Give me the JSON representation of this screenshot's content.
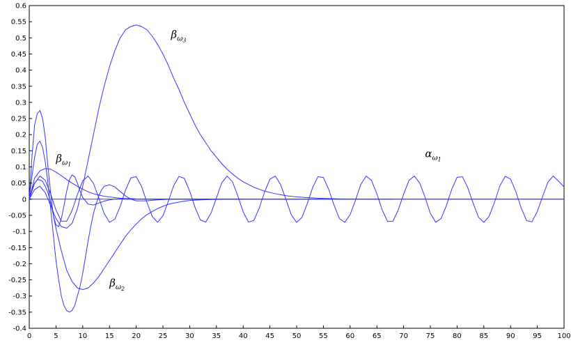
{
  "chart_data": {
    "type": "line",
    "xlim": [
      0,
      100
    ],
    "ylim": [
      -0.4,
      0.6
    ],
    "x_ticks": [
      0,
      5,
      10,
      15,
      20,
      25,
      30,
      35,
      40,
      45,
      50,
      55,
      60,
      65,
      70,
      75,
      80,
      85,
      90,
      95,
      100
    ],
    "y_ticks": [
      0.6,
      0.55,
      0.5,
      0.45,
      0.4,
      0.35,
      0.3,
      0.25,
      0.2,
      0.15,
      0.1,
      0.05,
      0,
      -0.05,
      -0.1,
      -0.15,
      -0.2,
      -0.25,
      -0.3,
      -0.35,
      -0.4
    ],
    "grid": false,
    "line_color": "#3333ff",
    "annotations": [
      {
        "greek": "β",
        "sub": "ω",
        "subsub": "1",
        "x": 5.0,
        "y": 0.115
      },
      {
        "greek": "β",
        "sub": "ω",
        "subsub": "2",
        "x": 15.0,
        "y": -0.27
      },
      {
        "greek": "β",
        "sub": "ω",
        "subsub": "3",
        "x": 26.5,
        "y": 0.5
      },
      {
        "greek": "α",
        "sub": "ω",
        "subsub": "1",
        "x": 74.0,
        "y": 0.13
      }
    ],
    "series": [
      {
        "key": "alpha_w1",
        "x": [
          0,
          1,
          2,
          3,
          4,
          5,
          6,
          7,
          8,
          9,
          10,
          11,
          12,
          13,
          14,
          15,
          16,
          17,
          18,
          19,
          20,
          21,
          22,
          23,
          24,
          25,
          26,
          27,
          28,
          29,
          30,
          31,
          32,
          33,
          34,
          35,
          36,
          37,
          38,
          39,
          40,
          41,
          42,
          43,
          44,
          45,
          46,
          47,
          48,
          49,
          50,
          51,
          52,
          53,
          54,
          55,
          56,
          57,
          58,
          59,
          60,
          61,
          62,
          63,
          64,
          65,
          66,
          67,
          68,
          69,
          70,
          71,
          72,
          73,
          74,
          75,
          76,
          77,
          78,
          79,
          80,
          81,
          82,
          83,
          84,
          85,
          86,
          87,
          88,
          89,
          90,
          91,
          92,
          93,
          94,
          95,
          96,
          97,
          98,
          99,
          100
        ],
        "y": [
          0,
          0.0492,
          0.0717,
          0.0584,
          0.0161,
          -0.0334,
          -0.068,
          -0.0682,
          -0.0355,
          0.0144,
          0.0569,
          0.0717,
          0.0494,
          0.0047,
          -0.0439,
          -0.0717,
          -0.062,
          -0.0228,
          0.0284,
          0.066,
          0.0699,
          0.0399,
          -0.0096,
          -0.0535,
          -0.0717,
          -0.0514,
          -0.0069,
          0.0414,
          0.0707,
          0.0643,
          0.0252,
          -0.0251,
          -0.0642,
          -0.0711,
          -0.0428,
          0.0041,
          0.0511,
          0.0717,
          0.0539,
          0.0102,
          -0.0391,
          -0.0708,
          -0.0656,
          -0.0277,
          0.0217,
          0.0622,
          0.0715,
          0.0454,
          -0.0006,
          -0.0486,
          -0.0717,
          -0.0562,
          -0.0132,
          0.0364,
          0.07,
          0.0671,
          0.0303,
          -0.0186,
          -0.0601,
          -0.0716,
          -0.048,
          -0.0031,
          0.0461,
          0.0716,
          0.0583,
          0.0164,
          -0.0336,
          -0.069,
          -0.0684,
          -0.0331,
          0.0154,
          0.058,
          0.0717,
          0.0505,
          0.0066,
          -0.0436,
          -0.0714,
          -0.0603,
          -0.0197,
          0.0307,
          0.0679,
          0.0694,
          0.0356,
          -0.0121,
          -0.0557,
          -0.0717,
          -0.0529,
          -0.0096,
          0.0411,
          0.0711,
          0.0623,
          0.0228,
          -0.0277,
          -0.0665,
          -0.0703,
          -0.0381,
          0.0088,
          0.0533,
          0.0717,
          0.0552,
          0.038
        ]
      },
      {
        "key": "beta_w1",
        "x": [
          0,
          1,
          2,
          3,
          4,
          5,
          6,
          7,
          8,
          9,
          10,
          11,
          12,
          13,
          14,
          15,
          16,
          17,
          18,
          19,
          20,
          22,
          24,
          26,
          28,
          30,
          35,
          40,
          45,
          50,
          55,
          60,
          65,
          70,
          75,
          80,
          85,
          90,
          95,
          100
        ],
        "y": [
          0,
          0.065,
          0.088,
          0.095,
          0.093,
          0.084,
          0.073,
          0.061,
          0.05,
          0.04,
          0.031,
          0.023,
          0.017,
          0.013,
          0.009,
          0.007,
          0.005,
          0.003,
          0.002,
          0.002,
          0.001,
          0.0005,
          0.0003,
          0.0001,
          0,
          0,
          0,
          0,
          0,
          0,
          0,
          0,
          0,
          0,
          0,
          0,
          0,
          0,
          0,
          0
        ]
      },
      {
        "key": "beta_w1_osc_a",
        "x": [
          0,
          0.5,
          1,
          1.5,
          2,
          2.5,
          3,
          3.5,
          4,
          4.5,
          5,
          5.5,
          6,
          6.5,
          7,
          7.5,
          8,
          8.5,
          9,
          9.5,
          10,
          11,
          12,
          13,
          14,
          15,
          16,
          17,
          18,
          19,
          20,
          22,
          24,
          26,
          28,
          30,
          35,
          40
        ],
        "y": [
          0,
          0.13,
          0.23,
          0.265,
          0.275,
          0.25,
          0.19,
          0.1,
          0.02,
          -0.05,
          -0.08,
          -0.085,
          -0.06,
          -0.02,
          0.025,
          0.06,
          0.075,
          0.07,
          0.05,
          0.025,
          0.005,
          -0.015,
          -0.018,
          -0.012,
          -0.006,
          -0.002,
          0.0005,
          0.0008,
          0.0005,
          0.0002,
          0,
          0,
          0,
          0,
          0,
          0,
          0,
          0
        ]
      },
      {
        "key": "beta_w2",
        "x": [
          0,
          0.5,
          1,
          1.5,
          2,
          2.5,
          3,
          3.5,
          4,
          4.5,
          5,
          5.5,
          6,
          6.5,
          7,
          7.5,
          8,
          8.5,
          9,
          9.5,
          10,
          10.5,
          11,
          11.5,
          12,
          12.5,
          13,
          13.5,
          14,
          15,
          16,
          17,
          18,
          19,
          20,
          22,
          24,
          26,
          28,
          30,
          32,
          35,
          38,
          40,
          45,
          50,
          55,
          60
        ],
        "y": [
          0,
          0.07,
          0.13,
          0.17,
          0.18,
          0.16,
          0.115,
          0.05,
          -0.03,
          -0.11,
          -0.19,
          -0.25,
          -0.3,
          -0.33,
          -0.345,
          -0.35,
          -0.345,
          -0.33,
          -0.3,
          -0.27,
          -0.23,
          -0.18,
          -0.13,
          -0.085,
          -0.045,
          -0.015,
          0.01,
          0.028,
          0.04,
          0.045,
          0.038,
          0.024,
          0.01,
          0,
          -0.005,
          -0.005,
          -0.002,
          -0.0005,
          0,
          0,
          0,
          0,
          0,
          0,
          0,
          0,
          0,
          0
        ]
      },
      {
        "key": "beta_w2_slow",
        "x": [
          0,
          0.5,
          1,
          1.5,
          2,
          2.5,
          3,
          3.5,
          4,
          4.5,
          5,
          6,
          7,
          8,
          9,
          10,
          11,
          12,
          13,
          14,
          15,
          16,
          17,
          18,
          19,
          20,
          21,
          22,
          23,
          24,
          25,
          26,
          27,
          28,
          29,
          30,
          32,
          34,
          36,
          38,
          40
        ],
        "y": [
          0,
          0.03,
          0.05,
          0.06,
          0.06,
          0.055,
          0.04,
          0.02,
          -0.01,
          -0.05,
          -0.09,
          -0.16,
          -0.22,
          -0.255,
          -0.275,
          -0.28,
          -0.275,
          -0.26,
          -0.24,
          -0.215,
          -0.19,
          -0.165,
          -0.14,
          -0.115,
          -0.095,
          -0.077,
          -0.061,
          -0.048,
          -0.038,
          -0.029,
          -0.022,
          -0.016,
          -0.012,
          -0.009,
          -0.006,
          -0.004,
          -0.002,
          -0.001,
          -0.0005,
          -0.0002,
          0
        ]
      },
      {
        "key": "beta_w3",
        "x": [
          0,
          1,
          2,
          3,
          4,
          5,
          6,
          7,
          8,
          9,
          10,
          11,
          12,
          13,
          14,
          15,
          16,
          17,
          18,
          19,
          20,
          21,
          22,
          23,
          24,
          25,
          26,
          27,
          28,
          29,
          30,
          31,
          32,
          33,
          34,
          35,
          36,
          37,
          38,
          39,
          40,
          42,
          44,
          46,
          48,
          50,
          52,
          54,
          56,
          58,
          60,
          62,
          64,
          66,
          68
        ],
        "y": [
          0,
          0.03,
          0.04,
          0.02,
          -0.02,
          -0.06,
          -0.085,
          -0.09,
          -0.075,
          -0.03,
          0.04,
          0.12,
          0.2,
          0.28,
          0.35,
          0.41,
          0.46,
          0.5,
          0.525,
          0.535,
          0.54,
          0.535,
          0.525,
          0.505,
          0.48,
          0.45,
          0.415,
          0.375,
          0.34,
          0.3,
          0.265,
          0.23,
          0.2,
          0.175,
          0.15,
          0.13,
          0.11,
          0.093,
          0.078,
          0.065,
          0.054,
          0.037,
          0.025,
          0.017,
          0.011,
          0.007,
          0.005,
          0.003,
          0.002,
          0.001,
          0.0007,
          0.0004,
          0.0002,
          0.0001,
          0
        ]
      },
      {
        "key": "zero_line",
        "x": [
          0,
          100
        ],
        "y": [
          0,
          0
        ]
      }
    ]
  }
}
